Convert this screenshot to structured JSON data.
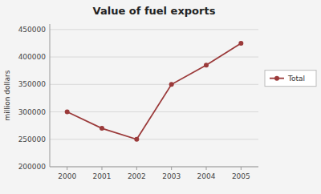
{
  "chart_data": {
    "type": "line",
    "title": "Value of fuel exports",
    "ylabel": "million dollars",
    "x": [
      2000,
      2001,
      2002,
      2003,
      2004,
      2005
    ],
    "series": [
      {
        "name": "Total",
        "color": "#9B3A3A",
        "marker": "circle",
        "line_style": "solid",
        "values": [
          300000,
          270000,
          250000,
          350000,
          385000,
          425000
        ]
      }
    ],
    "xlim": [
      1999.5,
      2005.5
    ],
    "xticks": [
      2000,
      2001,
      2002,
      2003,
      2004,
      2005
    ],
    "ylim": [
      200000,
      460000
    ],
    "yticks": [
      200000,
      250000,
      300000,
      350000,
      400000,
      450000
    ],
    "grid": true,
    "legend": "right"
  }
}
